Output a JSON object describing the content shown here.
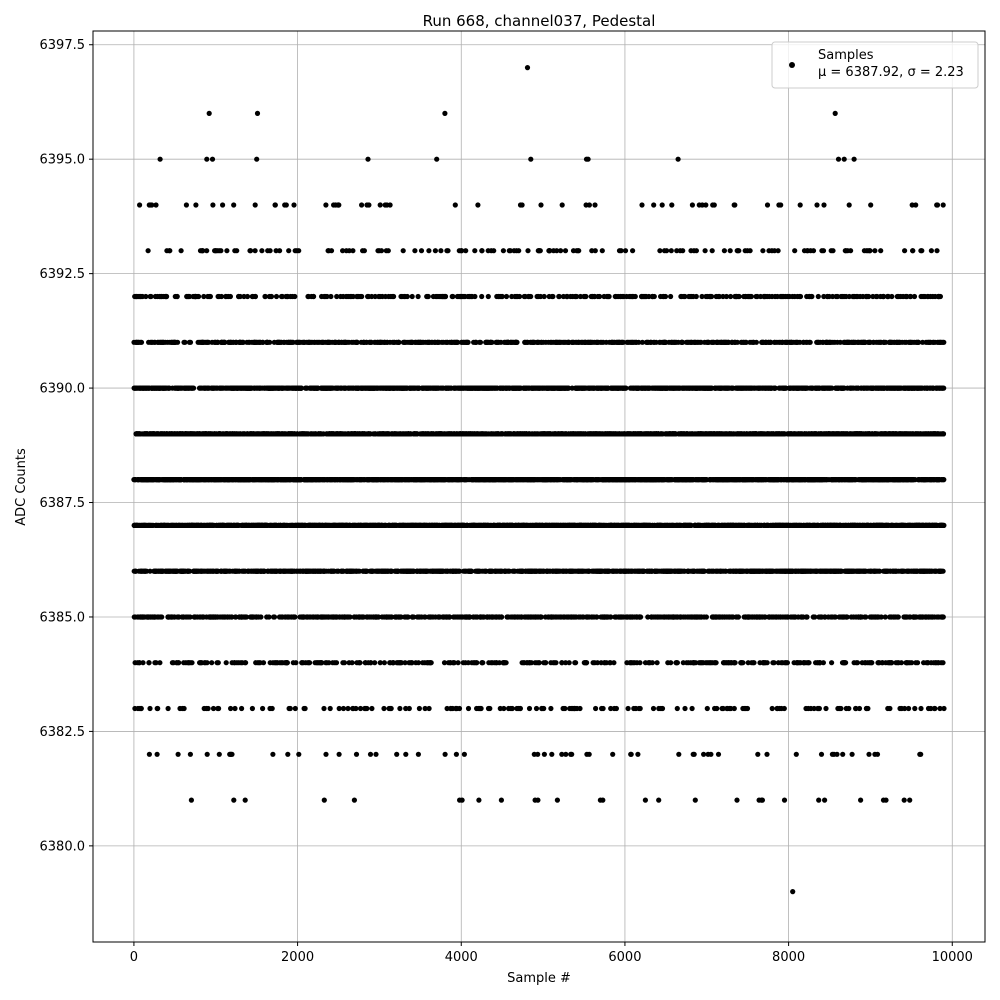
{
  "chart_data": {
    "type": "scatter",
    "title": "Run 668, channel037, Pedestal",
    "xlabel": "Sample #",
    "ylabel": "ADC Counts",
    "xlim": [
      -500,
      10400
    ],
    "ylim": [
      6377.9,
      6397.8
    ],
    "grid": true,
    "legend_position": "top-right",
    "x_ticks": [
      0,
      2000,
      4000,
      6000,
      8000,
      10000
    ],
    "x_tick_labels": [
      "0",
      "2000",
      "4000",
      "6000",
      "8000",
      "10000"
    ],
    "y_ticks": [
      6380.0,
      6382.5,
      6385.0,
      6387.5,
      6390.0,
      6392.5,
      6395.0,
      6397.5
    ],
    "y_tick_labels": [
      "6380.0",
      "6382.5",
      "6385.0",
      "6387.5",
      "6390.0",
      "6392.5",
      "6395.0",
      "6397.5"
    ],
    "marker_color": "#000000",
    "series": [
      {
        "name": "Samples",
        "label_line2": "μ = 6387.92, σ = 2.23",
        "n_samples": 9900,
        "mean": 6387.92,
        "sigma": 2.23,
        "x_range": [
          0,
          9899
        ],
        "observed_values": [
          6379,
          6381,
          6382,
          6383,
          6384,
          6385,
          6386,
          6387,
          6388,
          6389,
          6390,
          6391,
          6392,
          6393,
          6394,
          6395,
          6396,
          6397
        ],
        "outliers": [
          {
            "x": 4810,
            "y": 6397
          },
          {
            "x": 8050,
            "y": 6379
          },
          {
            "x": 920,
            "y": 6396
          },
          {
            "x": 1510,
            "y": 6396
          },
          {
            "x": 3800,
            "y": 6396
          },
          {
            "x": 8570,
            "y": 6396
          },
          {
            "x": 1360,
            "y": 6381
          },
          {
            "x": 3980,
            "y": 6381
          },
          {
            "x": 4010,
            "y": 6381
          },
          {
            "x": 5700,
            "y": 6381
          },
          {
            "x": 5730,
            "y": 6381
          },
          {
            "x": 6250,
            "y": 6381
          },
          {
            "x": 6860,
            "y": 6381
          },
          {
            "x": 7370,
            "y": 6381
          },
          {
            "x": 7640,
            "y": 6381
          },
          {
            "x": 7680,
            "y": 6381
          },
          {
            "x": 7950,
            "y": 6381
          },
          {
            "x": 8440,
            "y": 6381
          },
          {
            "x": 8880,
            "y": 6381
          },
          {
            "x": 9160,
            "y": 6381
          },
          {
            "x": 9190,
            "y": 6381
          },
          {
            "x": 9480,
            "y": 6381
          },
          {
            "x": 320,
            "y": 6395
          },
          {
            "x": 890,
            "y": 6395
          },
          {
            "x": 960,
            "y": 6395
          },
          {
            "x": 1500,
            "y": 6395
          },
          {
            "x": 2860,
            "y": 6395
          },
          {
            "x": 3700,
            "y": 6395
          },
          {
            "x": 4850,
            "y": 6395
          },
          {
            "x": 5530,
            "y": 6395
          },
          {
            "x": 5550,
            "y": 6395
          },
          {
            "x": 6650,
            "y": 6395
          },
          {
            "x": 8610,
            "y": 6395
          },
          {
            "x": 8680,
            "y": 6395
          },
          {
            "x": 8800,
            "y": 6395
          }
        ]
      }
    ]
  }
}
